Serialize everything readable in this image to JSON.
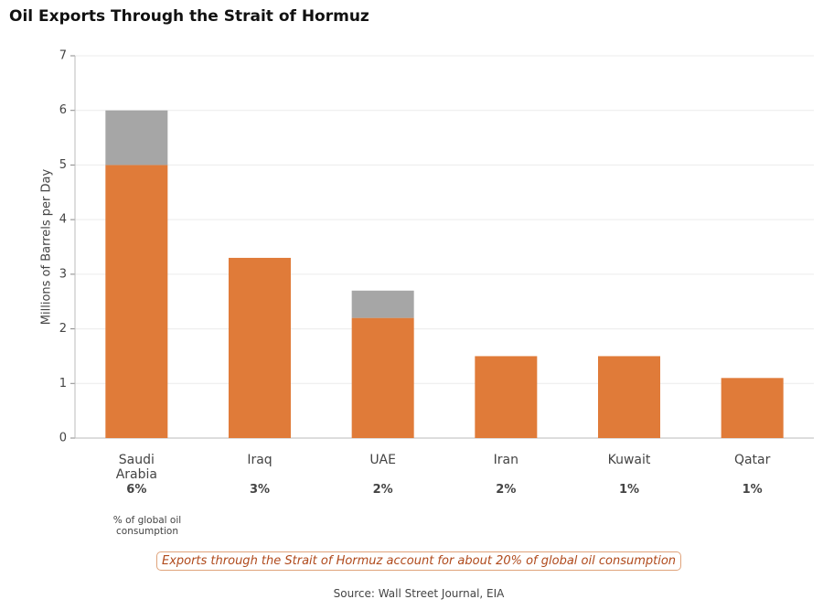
{
  "chart_data": {
    "type": "stacked_bar",
    "title": "Oil Exports Through the Strait of Hormuz",
    "y_label": "Millions of Barrels per Day",
    "categories": [
      "Saudi Arabia",
      "Iraq",
      "UAE",
      "Iran",
      "Kuwait",
      "Qatar"
    ],
    "series": [
      {
        "color": "#e07b39",
        "values": [
          5,
          3.3,
          2.2,
          1.5,
          1.5,
          1.1
        ]
      },
      {
        "color": "#a6a6a6",
        "values": [
          1,
          0,
          0.5,
          0,
          0,
          0
        ]
      }
    ],
    "share_labels": [
      "6%",
      "3%",
      "2%",
      "2%",
      "1%",
      "1%"
    ],
    "share_note": "% of global oil consumption",
    "annotation": "Exports through the Strait of Hormuz account for about 20% of global oil consumption",
    "source": "Source: Wall Street Journal, EIA",
    "ylim": [
      0,
      7
    ],
    "yticks": [
      0,
      1,
      2,
      3,
      4,
      5,
      6,
      7
    ],
    "grid": true
  }
}
